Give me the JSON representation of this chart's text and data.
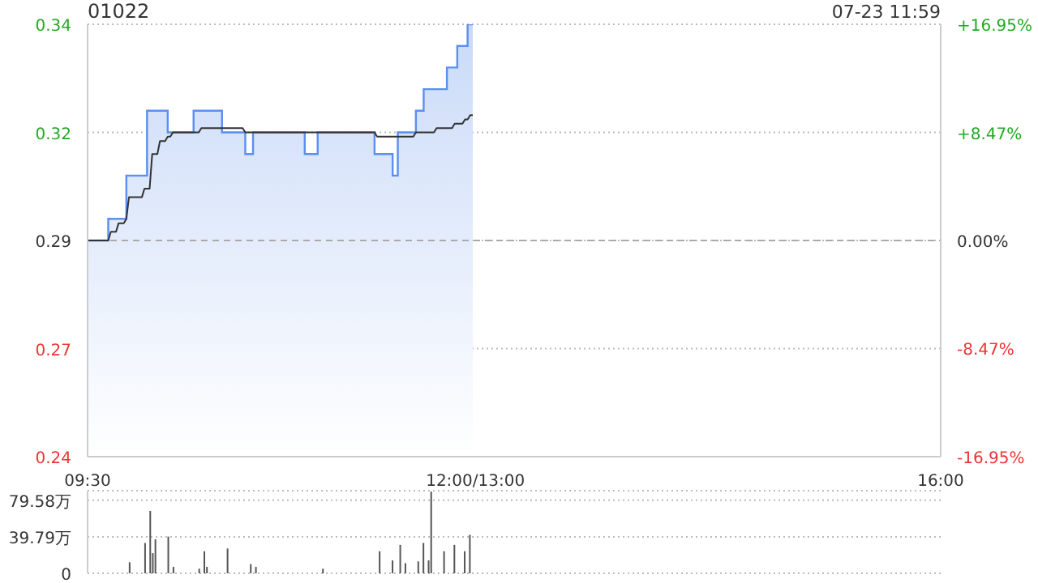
{
  "chart_data": [
    {
      "type": "area",
      "title": "01022",
      "annotations": [
        "07-23 11:59"
      ],
      "categories": [
        "09:30",
        null,
        null,
        null,
        null,
        null,
        null,
        null,
        null,
        null,
        null,
        null,
        null,
        null,
        null,
        null,
        null,
        null,
        null,
        null,
        null,
        null,
        null,
        null,
        null,
        null,
        null,
        null,
        null,
        null,
        null,
        null,
        null,
        null,
        null,
        null,
        null,
        null,
        null,
        null,
        null,
        null,
        null,
        null,
        null,
        null,
        null,
        null,
        null,
        null,
        null,
        null,
        null,
        null,
        null,
        null,
        null,
        null,
        null,
        null,
        null,
        null,
        null,
        null,
        null,
        null,
        null,
        null,
        null,
        null,
        null,
        null,
        null,
        null,
        null,
        null,
        null,
        null,
        null,
        null,
        null,
        null,
        null,
        null,
        null,
        null,
        null,
        null,
        null,
        null,
        null,
        null,
        null,
        null,
        null,
        null,
        null,
        null,
        null,
        null,
        null,
        null,
        null,
        null,
        null,
        null,
        null,
        null,
        null,
        null,
        null,
        null,
        null,
        null,
        null,
        null,
        null,
        null,
        null,
        null,
        null,
        null,
        null,
        null,
        null,
        null,
        null,
        null,
        null,
        null,
        null,
        null,
        null,
        null,
        null,
        null,
        null,
        null,
        null,
        null,
        null,
        null,
        null,
        null,
        null,
        null,
        null,
        null,
        null,
        null,
        "12:00/13:00",
        null,
        null,
        null,
        null,
        null,
        null,
        null,
        null,
        null,
        null,
        null,
        null,
        null,
        null,
        null,
        null,
        null,
        null,
        null,
        null,
        null,
        null,
        null,
        null,
        null,
        null,
        null,
        null,
        null,
        null,
        null,
        null,
        null,
        null,
        null,
        null,
        null,
        null,
        null,
        null,
        null,
        null,
        null,
        null,
        null,
        null,
        null,
        null,
        null,
        null,
        null,
        null,
        null,
        null,
        null,
        null,
        null,
        null,
        null,
        null,
        null,
        null,
        null,
        null,
        null,
        null,
        null,
        null,
        null,
        null,
        null,
        null,
        null,
        null,
        null,
        null,
        null,
        null,
        null,
        null,
        null,
        null,
        null,
        null,
        null,
        null,
        null,
        null,
        null,
        null,
        null,
        null,
        null,
        null,
        null,
        null,
        null,
        null,
        null,
        null,
        null,
        null,
        null,
        null,
        null,
        null,
        null,
        null,
        null,
        null,
        null,
        null,
        null,
        null,
        null,
        null,
        null,
        null,
        null,
        null,
        null,
        null,
        null,
        null,
        null,
        null,
        null,
        null,
        null,
        null,
        null,
        null,
        null,
        null,
        null,
        null,
        null,
        null,
        null,
        null,
        null,
        null,
        null,
        null,
        null,
        null,
        null,
        null,
        null,
        null,
        null,
        null,
        null,
        null,
        null,
        null,
        null,
        null,
        null,
        null,
        null,
        null,
        null,
        null,
        null,
        null,
        null,
        null,
        null,
        null,
        null,
        null,
        null,
        null,
        null,
        null,
        null,
        null,
        null,
        "16:00"
      ],
      "ylim": [
        0.245,
        0.345
      ],
      "yticks": [
        {
          "value": 0.245,
          "label": "0.24"
        },
        {
          "value": 0.27,
          "label": "0.27"
        },
        {
          "value": 0.295,
          "label": "0.29"
        },
        {
          "value": 0.32,
          "label": "0.32"
        },
        {
          "value": 0.345,
          "label": "0.34"
        }
      ],
      "y2lim": [
        -16.95,
        16.95
      ],
      "y2ticks": [
        {
          "value": -16.95,
          "label": "-16.95%"
        },
        {
          "value": -8.47,
          "label": "-8.47%"
        },
        {
          "value": 0,
          "label": "0.00%"
        },
        {
          "value": 8.47,
          "label": "+8.47%"
        },
        {
          "value": 16.95,
          "label": "+16.95%"
        }
      ],
      "grid": "y",
      "ref_lines": [
        {
          "axis": "y",
          "value": 0.295,
          "label": null,
          "color": "#aaaaaa",
          "line_style": "dashed"
        }
      ],
      "series": [
        {
          "color": "#5b8ff0",
          "values": [
            0.295,
            0.295,
            0.295,
            0.295,
            0.295,
            0.295,
            0.295,
            0.295,
            0.3,
            0.3,
            0.3,
            0.3,
            0.3,
            0.3,
            0.3,
            0.31,
            0.31,
            0.31,
            0.31,
            0.31,
            0.31,
            0.31,
            0.31,
            0.325,
            0.325,
            0.325,
            0.325,
            0.325,
            0.325,
            0.325,
            0.325,
            0.32,
            0.32,
            0.32,
            0.32,
            0.32,
            0.32,
            0.32,
            0.32,
            0.32,
            0.32,
            0.325,
            0.325,
            0.325,
            0.325,
            0.325,
            0.325,
            0.325,
            0.325,
            0.325,
            0.325,
            0.325,
            0.32,
            0.32,
            0.32,
            0.32,
            0.32,
            0.32,
            0.32,
            0.32,
            0.32,
            0.315,
            0.315,
            0.315,
            0.32,
            0.32,
            0.32,
            0.32,
            0.32,
            0.32,
            0.32,
            0.32,
            0.32,
            0.32,
            0.32,
            0.32,
            0.32,
            0.32,
            0.32,
            0.32,
            0.32,
            0.32,
            0.32,
            0.32,
            0.315,
            0.315,
            0.315,
            0.315,
            0.315,
            0.32,
            0.32,
            0.32,
            0.32,
            0.32,
            0.32,
            0.32,
            0.32,
            0.32,
            0.32,
            0.32,
            0.32,
            0.32,
            0.32,
            0.32,
            0.32,
            0.32,
            0.32,
            0.32,
            0.32,
            0.32,
            0.32,
            0.315,
            0.315,
            0.315,
            0.315,
            0.315,
            0.315,
            0.315,
            0.31,
            0.31,
            0.32,
            0.32,
            0.32,
            0.32,
            0.32,
            0.32,
            0.32,
            0.325,
            0.325,
            0.325,
            0.33,
            0.33,
            0.33,
            0.33,
            0.33,
            0.33,
            0.33,
            0.33,
            0.33,
            0.335,
            0.335,
            0.335,
            0.335,
            0.34,
            0.34,
            0.34,
            0.34,
            0.345,
            0.345,
            0.345,
            null,
            null,
            null,
            null,
            null,
            null,
            null,
            null,
            null,
            null,
            null,
            null,
            null,
            null,
            null,
            null,
            null,
            null,
            null,
            null,
            null,
            null,
            null,
            null,
            null,
            null,
            null,
            null,
            null,
            null,
            null,
            null,
            null,
            null,
            null,
            null,
            null,
            null,
            null,
            null,
            null,
            null,
            null,
            null,
            null,
            null,
            null,
            null,
            null,
            null,
            null,
            null,
            null,
            null,
            null,
            null,
            null,
            null,
            null,
            null,
            null,
            null,
            null,
            null,
            null,
            null,
            null,
            null,
            null,
            null,
            null,
            null,
            null,
            null,
            null,
            null,
            null,
            null,
            null,
            null,
            null,
            null,
            null,
            null,
            null,
            null,
            null,
            null,
            null,
            null,
            null,
            null,
            null,
            null,
            null,
            null,
            null,
            null,
            null,
            null,
            null,
            null,
            null,
            null,
            null,
            null,
            null,
            null,
            null,
            null,
            null,
            null,
            null,
            null,
            null,
            null,
            null,
            null,
            null,
            null,
            null,
            null,
            null,
            null,
            null,
            null,
            null,
            null,
            null,
            null,
            null,
            null,
            null,
            null,
            null,
            null,
            null,
            null,
            null,
            null,
            null,
            null,
            null,
            null,
            null,
            null,
            null,
            null,
            null,
            null,
            null,
            null,
            null,
            null,
            null,
            null,
            null,
            null,
            null,
            null,
            null,
            null,
            null,
            null,
            null,
            null,
            null,
            null,
            null,
            null,
            null,
            null,
            null,
            null,
            null,
            null,
            null,
            null,
            null,
            null,
            null
          ]
        },
        {
          "type": "line",
          "color": "#333333",
          "values": [
            0.295,
            0.295,
            0.295,
            0.295,
            0.295,
            0.295,
            0.295,
            0.295,
            0.295,
            0.297,
            0.297,
            0.297,
            0.299,
            0.299,
            0.299,
            0.3,
            0.305,
            0.305,
            0.305,
            0.305,
            0.305,
            0.305,
            0.307,
            0.307,
            0.307,
            0.315,
            0.315,
            0.315,
            0.318,
            0.318,
            0.318,
            0.319,
            0.319,
            0.32,
            0.32,
            0.32,
            0.32,
            0.32,
            0.32,
            0.32,
            0.32,
            0.32,
            0.32,
            0.32,
            0.321,
            0.321,
            0.321,
            0.321,
            0.321,
            0.321,
            0.321,
            0.321,
            0.321,
            0.321,
            0.321,
            0.321,
            0.321,
            0.321,
            0.321,
            0.321,
            0.321,
            0.32,
            0.32,
            0.32,
            0.32,
            0.32,
            0.32,
            0.32,
            0.32,
            0.32,
            0.32,
            0.32,
            0.32,
            0.32,
            0.32,
            0.32,
            0.32,
            0.32,
            0.32,
            0.32,
            0.32,
            0.32,
            0.32,
            0.32,
            0.32,
            0.32,
            0.32,
            0.32,
            0.32,
            0.32,
            0.32,
            0.32,
            0.32,
            0.32,
            0.32,
            0.32,
            0.32,
            0.32,
            0.32,
            0.32,
            0.32,
            0.32,
            0.32,
            0.32,
            0.32,
            0.32,
            0.32,
            0.32,
            0.32,
            0.32,
            0.32,
            0.32,
            0.319,
            0.319,
            0.319,
            0.319,
            0.319,
            0.319,
            0.319,
            0.319,
            0.319,
            0.319,
            0.319,
            0.319,
            0.319,
            0.319,
            0.319,
            0.32,
            0.32,
            0.32,
            0.32,
            0.32,
            0.32,
            0.32,
            0.32,
            0.321,
            0.321,
            0.321,
            0.321,
            0.321,
            0.321,
            0.321,
            0.322,
            0.322,
            0.322,
            0.322,
            0.323,
            0.323,
            0.324,
            0.324,
            null,
            null,
            null,
            null,
            null,
            null,
            null,
            null,
            null,
            null,
            null,
            null,
            null,
            null,
            null,
            null,
            null,
            null,
            null,
            null,
            null,
            null,
            null,
            null,
            null,
            null,
            null,
            null,
            null,
            null,
            null,
            null,
            null,
            null,
            null,
            null,
            null,
            null,
            null,
            null,
            null,
            null,
            null,
            null,
            null,
            null,
            null,
            null,
            null,
            null,
            null,
            null,
            null,
            null,
            null,
            null,
            null,
            null,
            null,
            null,
            null,
            null,
            null,
            null,
            null,
            null,
            null,
            null,
            null,
            null,
            null,
            null,
            null,
            null,
            null,
            null,
            null,
            null,
            null,
            null,
            null,
            null,
            null,
            null,
            null,
            null,
            null,
            null,
            null,
            null,
            null,
            null,
            null,
            null,
            null,
            null,
            null,
            null,
            null,
            null,
            null,
            null,
            null,
            null,
            null,
            null,
            null,
            null,
            null,
            null,
            null,
            null,
            null,
            null,
            null,
            null,
            null,
            null,
            null,
            null,
            null,
            null,
            null,
            null,
            null,
            null,
            null,
            null,
            null,
            null,
            null,
            null,
            null,
            null,
            null,
            null,
            null,
            null,
            null,
            null,
            null,
            null,
            null,
            null,
            null,
            null,
            null,
            null,
            null,
            null,
            null,
            null,
            null,
            null,
            null,
            null,
            null,
            null,
            null,
            null,
            null,
            null,
            null,
            null,
            null,
            null,
            null,
            null,
            null,
            null,
            null,
            null,
            null,
            null,
            null,
            null,
            null,
            null,
            null,
            null,
            null
          ]
        }
      ]
    },
    {
      "type": "bar",
      "tick_labels": "y",
      "ylim": [
        0,
        90
      ],
      "categories": [
        null,
        null,
        null,
        null,
        null,
        null,
        null,
        null,
        null,
        null,
        null,
        null,
        null,
        null,
        null,
        null,
        null,
        null,
        null,
        null,
        null,
        null,
        null,
        null,
        null,
        null,
        null,
        null,
        null,
        null,
        null,
        null,
        null,
        null,
        null,
        null,
        null,
        null,
        null,
        null,
        null,
        null,
        null,
        null,
        null,
        null,
        null,
        null,
        null,
        null,
        null,
        null,
        null,
        null,
        null,
        null,
        null,
        null,
        null,
        null,
        null,
        null,
        null,
        null,
        null,
        null,
        null,
        null,
        null,
        null,
        null,
        null,
        null,
        null,
        null,
        null,
        null,
        null,
        null,
        null,
        null,
        null,
        null,
        null,
        null,
        null,
        null,
        null,
        null,
        null,
        null,
        null,
        null,
        null,
        null,
        null,
        null,
        null,
        null,
        null,
        null,
        null,
        null,
        null,
        null,
        null,
        null,
        null,
        null,
        null,
        null,
        null,
        null,
        null,
        null,
        null,
        null,
        null,
        null,
        null,
        null,
        null,
        null,
        null,
        null,
        null,
        null,
        null,
        null,
        null,
        null,
        null,
        null,
        null,
        null,
        null,
        null,
        null,
        null,
        null,
        null,
        null,
        null,
        null,
        null,
        null,
        null,
        null,
        null,
        null,
        null,
        null,
        null,
        null,
        null,
        null,
        null,
        null,
        null,
        null,
        null,
        null,
        null,
        null,
        null,
        null,
        null,
        null,
        null,
        null,
        null,
        null,
        null,
        null,
        null,
        null,
        null,
        null,
        null,
        null,
        null,
        null,
        null,
        null,
        null,
        null,
        null,
        null,
        null,
        null,
        null,
        null,
        null,
        null,
        null,
        null,
        null,
        null,
        null,
        null,
        null,
        null,
        null,
        null,
        null,
        null,
        null,
        null,
        null,
        null,
        null,
        null,
        null,
        null,
        null,
        null,
        null,
        null,
        null,
        null,
        null,
        null,
        null,
        null,
        null,
        null,
        null,
        null,
        null,
        null,
        null,
        null,
        null,
        null,
        null,
        null,
        null,
        null,
        null,
        null,
        null,
        null,
        null,
        null,
        null,
        null,
        null,
        null,
        null,
        null,
        null,
        null,
        null,
        null,
        null,
        null,
        null,
        null,
        null,
        null,
        null,
        null,
        null,
        null,
        null,
        null,
        null,
        null,
        null,
        null,
        null,
        null,
        null,
        null,
        null,
        null,
        null,
        null,
        null,
        null,
        null,
        null,
        null,
        null,
        null,
        null,
        null,
        null,
        null,
        null,
        null,
        null,
        null,
        null,
        null,
        null,
        null,
        null,
        null,
        null,
        null,
        null,
        null,
        null,
        null,
        null,
        null,
        null,
        null,
        null,
        null,
        null,
        null,
        null,
        null,
        null,
        null,
        null,
        null,
        null,
        null,
        null,
        null,
        null,
        null,
        null,
        null,
        null,
        null,
        null,
        null
      ],
      "yticks": [
        {
          "value": 0,
          "label": "0"
        },
        {
          "value": 39.79,
          "label": "39.79万"
        },
        {
          "value": 79.58,
          "label": "79.58万"
        }
      ],
      "grid": "y",
      "series": [
        {
          "color": "#555555",
          "values": [
            null,
            null,
            null,
            null,
            null,
            null,
            null,
            null,
            null,
            null,
            null,
            null,
            null,
            null,
            null,
            null,
            12,
            null,
            null,
            null,
            null,
            null,
            33,
            null,
            68,
            22,
            37,
            null,
            null,
            null,
            null,
            40,
            null,
            7,
            null,
            null,
            null,
            null,
            null,
            null,
            null,
            null,
            null,
            5,
            null,
            24,
            7,
            null,
            null,
            null,
            null,
            null,
            null,
            null,
            27,
            null,
            null,
            null,
            null,
            null,
            null,
            null,
            null,
            10,
            null,
            7,
            null,
            null,
            null,
            null,
            null,
            null,
            null,
            null,
            null,
            null,
            null,
            null,
            null,
            null,
            null,
            null,
            null,
            null,
            null,
            null,
            null,
            null,
            null,
            null,
            null,
            5,
            null,
            null,
            null,
            null,
            null,
            null,
            null,
            null,
            null,
            null,
            null,
            null,
            null,
            null,
            null,
            null,
            null,
            null,
            null,
            null,
            null,
            24,
            null,
            null,
            null,
            null,
            14,
            null,
            null,
            31,
            null,
            11,
            null,
            null,
            null,
            null,
            13,
            null,
            33,
            null,
            14,
            89,
            null,
            null,
            null,
            null,
            24,
            null,
            null,
            null,
            31,
            null,
            null,
            null,
            24,
            null,
            42,
            null,
            null,
            null,
            null,
            null,
            null,
            null,
            null,
            null,
            null,
            null,
            null,
            null,
            null,
            null,
            null,
            null,
            null,
            null,
            null,
            null,
            null,
            null,
            null,
            null,
            null,
            null,
            null,
            null,
            null,
            null,
            null,
            null,
            null,
            null,
            null,
            null,
            null,
            null,
            null,
            null,
            null,
            null,
            null,
            null,
            null,
            null,
            null,
            null,
            null,
            null,
            null,
            null,
            null,
            null,
            null,
            null,
            null,
            null,
            null,
            null,
            null,
            null,
            null,
            null,
            null,
            null,
            null,
            null,
            null,
            null,
            null,
            null,
            null,
            null,
            null,
            null,
            null,
            null,
            null,
            null,
            null,
            null,
            null,
            null,
            null,
            null,
            null,
            null,
            null,
            null,
            null,
            null,
            null,
            null,
            null,
            null,
            null,
            null,
            null,
            null,
            null,
            null,
            null,
            null,
            null,
            null,
            null,
            null,
            null,
            null,
            null,
            null,
            null,
            null,
            null,
            null,
            null,
            null,
            null,
            null,
            null,
            null,
            null,
            null,
            null,
            null,
            null,
            null,
            null,
            null,
            null,
            null,
            null,
            null,
            null,
            null,
            null,
            null,
            null,
            null,
            null,
            null,
            null,
            null,
            null,
            null,
            null,
            null,
            null,
            null,
            null,
            null,
            null,
            null,
            null,
            null,
            null,
            null,
            null,
            null,
            null,
            null,
            null,
            null,
            null,
            null,
            null,
            null,
            null,
            null,
            null,
            null,
            null,
            null,
            null,
            null,
            null,
            null,
            null,
            null,
            null
          ]
        }
      ]
    }
  ]
}
